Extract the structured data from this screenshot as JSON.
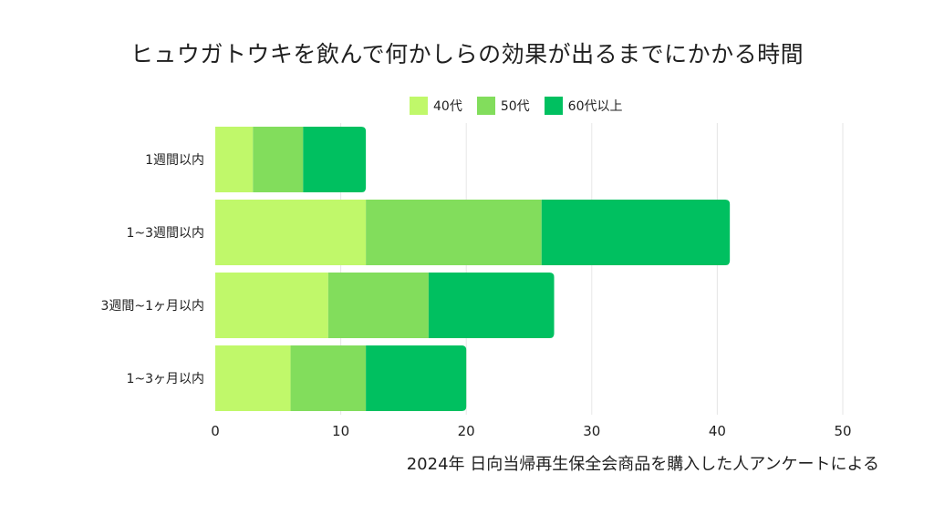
{
  "title": "ヒュウガトウキを飲んで何かしらの効果が出るまでにかかる時間",
  "source": "2024年 日向当帰再生保全会商品を購入した人アンケートによる",
  "colors": [
    "#c0f86a",
    "#82dd5c",
    "#00c060"
  ],
  "chart_data": {
    "type": "bar",
    "orientation": "horizontal",
    "stacked": true,
    "categories": [
      "1週間以内",
      "1~3週間以内",
      "3週間~1ヶ月以内",
      "1~3ヶ月以内"
    ],
    "series": [
      {
        "name": "40代",
        "values": [
          3,
          12,
          9,
          6
        ]
      },
      {
        "name": "50代",
        "values": [
          4,
          14,
          8,
          6
        ]
      },
      {
        "name": "60代以上",
        "values": [
          5,
          15,
          10,
          8
        ]
      }
    ],
    "xlim": [
      0,
      50
    ],
    "xticks": [
      0,
      10,
      20,
      30,
      40,
      50
    ],
    "grid": true,
    "legend_position": "top-right",
    "xlabel": "",
    "ylabel": ""
  }
}
